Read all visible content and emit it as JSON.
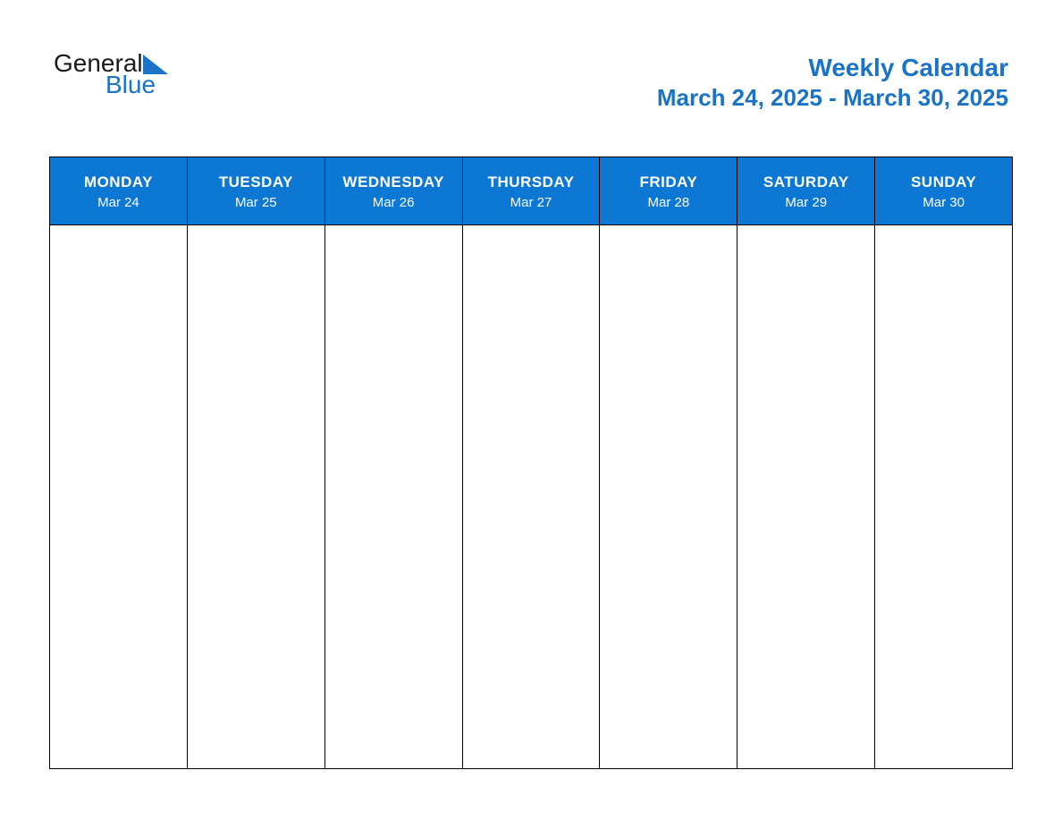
{
  "logo": {
    "text_general": "General",
    "text_blue": "Blue",
    "triangle_color": "#1a73c7",
    "text_black_color": "#1a1a1a",
    "text_blue_color": "#1a73c7"
  },
  "header": {
    "title": "Weekly Calendar",
    "date_range": "March 24, 2025 - March 30, 2025",
    "title_color": "#1a73c7",
    "title_fontsize": 28,
    "title_fontweight": 700
  },
  "calendar": {
    "type": "table",
    "header_bg_color": "#0d78d3",
    "header_text_color": "#ffffff",
    "border_color": "#000000",
    "body_bg_color": "#ffffff",
    "dayname_fontsize": 17,
    "dayname_fontweight": 700,
    "daydate_fontsize": 15,
    "days": [
      {
        "name": "MONDAY",
        "date": "Mar 24"
      },
      {
        "name": "TUESDAY",
        "date": "Mar 25"
      },
      {
        "name": "WEDNESDAY",
        "date": "Mar 26"
      },
      {
        "name": "THURSDAY",
        "date": "Mar 27"
      },
      {
        "name": "FRIDAY",
        "date": "Mar 28"
      },
      {
        "name": "SATURDAY",
        "date": "Mar 29"
      },
      {
        "name": "SUNDAY",
        "date": "Mar 30"
      }
    ]
  }
}
